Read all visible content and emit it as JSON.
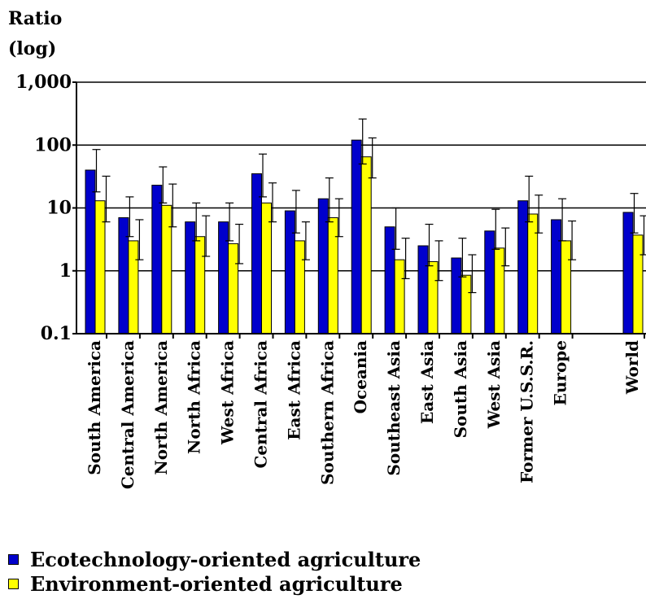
{
  "chart_data": {
    "type": "bar",
    "scale": "log",
    "ylabel": [
      "Ratio",
      "(log)"
    ],
    "ylim": [
      0.1,
      1000
    ],
    "yticks": [
      {
        "value": 0.1,
        "label": "0.1"
      },
      {
        "value": 1,
        "label": "1"
      },
      {
        "value": 10,
        "label": "10"
      },
      {
        "value": 100,
        "label": "100"
      },
      {
        "value": 1000,
        "label": "1,000"
      }
    ],
    "grid": true,
    "legend_position": "bottom-left",
    "error_bars": true,
    "categories": [
      "South America",
      "Central America",
      "North America",
      "North Africa",
      "West Africa",
      "Central Africa",
      "East Africa",
      "Southern Africa",
      "Oceania",
      "Southeast Asia",
      "East Asia",
      "South Asia",
      "West Asia",
      "Former U.S.S.R.",
      "Europe",
      "World"
    ],
    "series": [
      {
        "name": "Ecotechnology-oriented agriculture",
        "color": "#0000cc",
        "values": [
          40,
          7,
          23,
          6,
          6,
          35,
          9,
          14,
          120,
          5,
          2.5,
          1.6,
          4.3,
          13,
          6.5,
          8.5
        ],
        "error_low": [
          18,
          3.5,
          12,
          3,
          3,
          15,
          4,
          6,
          50,
          2.2,
          1.2,
          0.8,
          2.2,
          6,
          3,
          4
        ],
        "error_high": [
          85,
          15,
          45,
          12,
          12,
          72,
          19,
          30,
          260,
          10,
          5.5,
          3.3,
          9.5,
          32,
          14,
          17
        ]
      },
      {
        "name": "Environment-oriented agriculture",
        "color": "#ffff00",
        "values": [
          13,
          3,
          11,
          3.5,
          2.7,
          12,
          3,
          7,
          65,
          1.5,
          1.4,
          0.85,
          2.3,
          8,
          3,
          3.7
        ],
        "error_low": [
          6,
          1.5,
          5,
          1.7,
          1.3,
          6,
          1.5,
          3.5,
          30,
          0.75,
          0.7,
          0.45,
          1.2,
          4,
          1.5,
          1.8
        ],
        "error_high": [
          32,
          6.5,
          24,
          7.5,
          5.5,
          25,
          6,
          14,
          130,
          3.3,
          3,
          1.8,
          4.8,
          16,
          6.2,
          7.5
        ]
      }
    ]
  }
}
